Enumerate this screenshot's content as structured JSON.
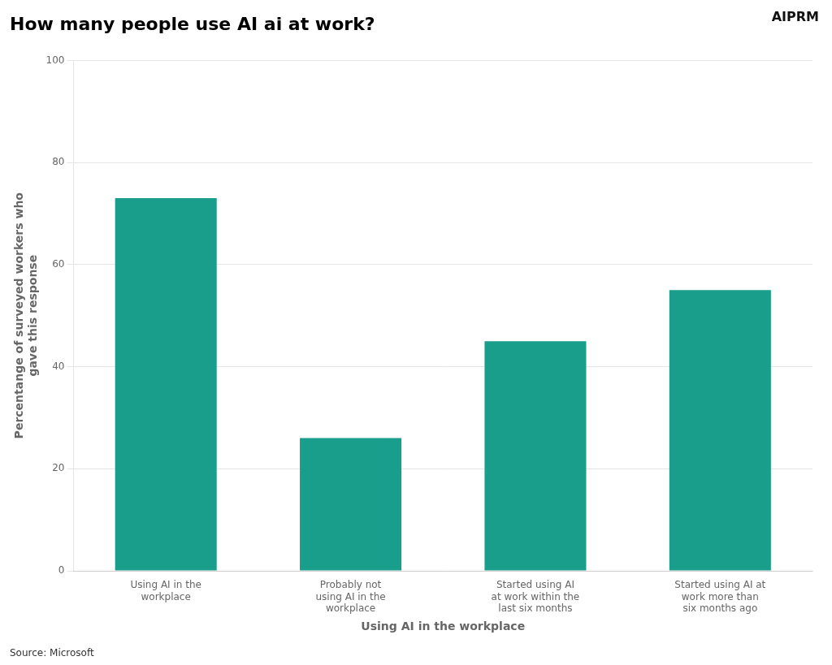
{
  "chart_data": {
    "type": "bar",
    "title": "How many people use AI ai at work?",
    "x_label": "Using AI in the workplace",
    "y_label": "Percentange of surveyed workers who\ngave this response",
    "annotations": [
      "Source: Microsoft",
      "AIPRM"
    ],
    "categories": [
      "Using AI in the\nworkplace",
      "Probably not\nusing AI in the\nworkplace",
      "Started using AI\nat work within the\nlast six months",
      "Started using AI at\nwork more than\nsix months ago"
    ],
    "values": [
      73,
      26,
      45,
      55
    ],
    "color": "#1a9e8c",
    "ylim": [
      0,
      100
    ],
    "yticks": [
      0,
      20,
      40,
      60,
      80,
      100
    ],
    "grid": true
  }
}
